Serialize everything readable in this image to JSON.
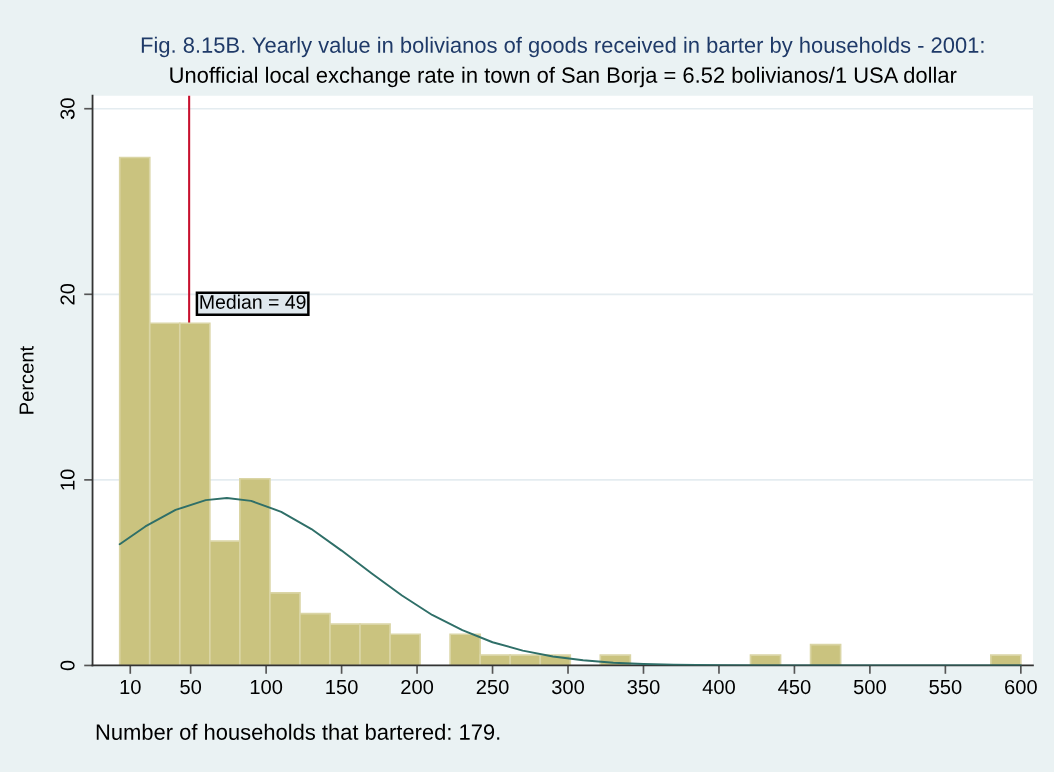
{
  "chart_data": {
    "type": "histogram",
    "title": "Fig. 8.15B. Yearly value in bolivianos of goods received in barter by households - 2001:",
    "subtitle": "Unofficial local exchange rate in town of San Borja = 6.52 bolivianos/1 USA dollar",
    "ylabel": "Percent",
    "annotations": [
      "Number of households that bartered: 179."
    ],
    "bins": [
      3,
      22.9,
      42.8,
      62.7,
      82.6,
      102.5,
      122.4,
      142.3,
      162.2,
      182.1,
      202,
      221.9,
      241.8,
      261.7,
      281.6,
      301.5,
      321.4,
      341.3,
      361.2,
      381.1,
      401,
      420.9,
      440.8,
      460.7,
      480.6,
      500.5,
      520.4,
      540.3,
      560.2,
      580.1,
      600
    ],
    "series": [
      {
        "color": "#cac37f",
        "values": [
          27.37,
          18.44,
          18.44,
          6.7,
          10.06,
          3.91,
          2.79,
          2.23,
          2.23,
          1.68,
          0,
          1.68,
          0.56,
          0.56,
          0.56,
          0,
          0.56,
          0,
          0,
          0,
          0,
          0.56,
          0,
          1.12,
          0,
          0,
          0,
          0,
          0,
          0.56
        ]
      },
      {
        "type": "line",
        "color": "#2f6f68",
        "x": [
          3,
          20,
          40,
          60,
          74,
          90,
          110,
          130,
          150,
          170,
          190,
          210,
          230,
          250,
          270,
          290,
          310,
          330,
          350,
          370,
          400,
          450,
          500,
          550,
          600
        ],
        "values": [
          6.53,
          7.49,
          8.38,
          8.91,
          9.02,
          8.87,
          8.28,
          7.35,
          6.19,
          4.96,
          3.77,
          2.72,
          1.9,
          1.25,
          0.8,
          0.48,
          0.28,
          0.15,
          0.08,
          0.04,
          0.01,
          0,
          0,
          0,
          0
        ]
      }
    ],
    "ref_lines": [
      {
        "axis": "x",
        "value": 49,
        "label": "Median = 49",
        "color": "#c8102e"
      }
    ],
    "xlim": [
      -15,
      608
    ],
    "xticks": [
      10,
      50,
      100,
      150,
      200,
      250,
      300,
      350,
      400,
      450,
      500,
      550,
      600
    ],
    "ylim": [
      0,
      30.7
    ],
    "yticks": [
      0,
      10,
      20,
      30
    ],
    "grid": "y"
  }
}
